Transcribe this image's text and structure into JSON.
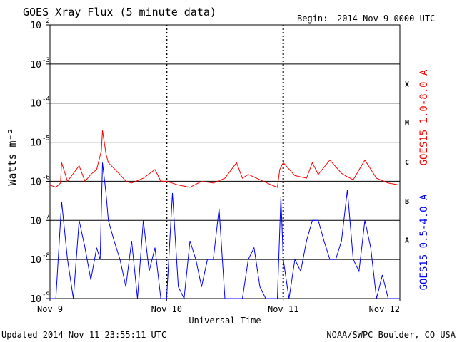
{
  "header": {
    "title": "GOES Xray Flux (5 minute data)",
    "begin_label": "Begin:",
    "begin_value": "2014 Nov 9 0000 UTC"
  },
  "footer": {
    "updated": "Updated 2014 Nov 11 23:55:11 UTC",
    "credit": "NOAA/SWPC Boulder, CO USA"
  },
  "colors": {
    "long_channel": "#ff0000",
    "short_channel": "#0000ff",
    "axes": "#000000"
  },
  "chart_data": {
    "type": "line",
    "title": "GOES Xray Flux (5 minute data)",
    "xlabel": "Universal Time",
    "ylabel": "Watts m⁻²",
    "yscale": "log",
    "ylim": [
      1e-09,
      0.01
    ],
    "xlim": [
      0,
      3
    ],
    "x_unit": "days since 2014 Nov 9 0000 UTC",
    "grid": true,
    "x_ticks": [
      {
        "x": 0,
        "label": "Nov 9"
      },
      {
        "x": 1,
        "label": "Nov 10"
      },
      {
        "x": 2,
        "label": "Nov 11"
      },
      {
        "x": 3,
        "label": "Nov 12"
      }
    ],
    "y_ticks": [
      {
        "base": "10",
        "exp": "-9",
        "value": 1e-09
      },
      {
        "base": "10",
        "exp": "-8",
        "value": 1e-08
      },
      {
        "base": "10",
        "exp": "-7",
        "value": 1e-07
      },
      {
        "base": "10",
        "exp": "-6",
        "value": 1e-06
      },
      {
        "base": "10",
        "exp": "-5",
        "value": 1e-05
      },
      {
        "base": "10",
        "exp": "-4",
        "value": 0.0001
      },
      {
        "base": "10",
        "exp": "-3",
        "value": 0.001
      },
      {
        "base": "10",
        "exp": "-2",
        "value": 0.01
      }
    ],
    "flare_classes": [
      {
        "label": "A",
        "lo": 1e-08,
        "hi": 1e-07
      },
      {
        "label": "B",
        "lo": 1e-07,
        "hi": 1e-06
      },
      {
        "label": "C",
        "lo": 1e-06,
        "hi": 1e-05
      },
      {
        "label": "M",
        "lo": 1e-05,
        "hi": 0.0001
      },
      {
        "label": "X",
        "lo": 0.0001,
        "hi": 0.001
      }
    ],
    "series": [
      {
        "name": "GOES15 1.0-8.0 A",
        "color": "#ff0000",
        "x": [
          0.0,
          0.05,
          0.09,
          0.1,
          0.15,
          0.25,
          0.3,
          0.35,
          0.4,
          0.44,
          0.45,
          0.48,
          0.5,
          0.6,
          0.65,
          0.7,
          0.8,
          0.9,
          0.95,
          1.0,
          1.1,
          1.2,
          1.3,
          1.4,
          1.5,
          1.6,
          1.65,
          1.7,
          1.8,
          1.9,
          1.95,
          1.97,
          2.0,
          2.1,
          2.2,
          2.25,
          2.3,
          2.4,
          2.5,
          2.55,
          2.6,
          2.7,
          2.8,
          2.9,
          3.0
        ],
        "y": [
          8e-07,
          7e-07,
          9e-07,
          3e-06,
          1e-06,
          2.5e-06,
          1e-06,
          1.5e-06,
          2e-06,
          6e-06,
          2e-05,
          5e-06,
          3e-06,
          1.5e-06,
          1e-06,
          9e-07,
          1.2e-06,
          2e-06,
          1e-06,
          1e-06,
          8e-07,
          7e-07,
          1e-06,
          9e-07,
          1.2e-06,
          3e-06,
          1.2e-06,
          1.5e-06,
          1.1e-06,
          8e-07,
          7e-07,
          2e-06,
          3e-06,
          1.4e-06,
          1.2e-06,
          3e-06,
          1.5e-06,
          3.5e-06,
          1.6e-06,
          1.3e-06,
          1.1e-06,
          3.5e-06,
          1.2e-06,
          9e-07,
          8e-07
        ]
      },
      {
        "name": "GOES15 0.5-4.0 A",
        "color": "#0000ff",
        "x": [
          0.0,
          0.05,
          0.1,
          0.15,
          0.2,
          0.25,
          0.3,
          0.35,
          0.4,
          0.43,
          0.45,
          0.48,
          0.5,
          0.55,
          0.6,
          0.65,
          0.7,
          0.75,
          0.8,
          0.85,
          0.9,
          0.95,
          1.0,
          1.05,
          1.1,
          1.15,
          1.2,
          1.25,
          1.3,
          1.35,
          1.4,
          1.45,
          1.5,
          1.55,
          1.6,
          1.65,
          1.7,
          1.75,
          1.8,
          1.85,
          1.9,
          1.95,
          1.98,
          2.0,
          2.05,
          2.1,
          2.15,
          2.2,
          2.25,
          2.3,
          2.35,
          2.4,
          2.45,
          2.5,
          2.55,
          2.6,
          2.65,
          2.7,
          2.75,
          2.8,
          2.85,
          2.9,
          2.95,
          3.0
        ],
        "y": [
          1e-09,
          1e-09,
          3e-07,
          1e-08,
          1e-09,
          1e-07,
          2e-08,
          3e-09,
          2e-08,
          1e-08,
          3e-06,
          5e-07,
          1e-07,
          3e-08,
          1e-08,
          2e-09,
          3e-08,
          1e-09,
          1e-07,
          5e-09,
          2e-08,
          1e-09,
          1e-09,
          5e-07,
          2e-09,
          1e-09,
          3e-08,
          1e-08,
          2e-09,
          1e-08,
          1e-08,
          2e-07,
          1e-09,
          1e-09,
          1e-09,
          1e-09,
          1e-08,
          2e-08,
          2e-09,
          1e-09,
          1e-09,
          1e-09,
          4e-07,
          1e-08,
          1e-09,
          1e-08,
          5e-09,
          3e-08,
          1e-07,
          1e-07,
          3e-08,
          1e-08,
          1e-08,
          3e-08,
          6e-07,
          1e-08,
          5e-09,
          1e-07,
          2e-08,
          1e-09,
          4e-09,
          1e-09,
          1e-09,
          1e-09
        ]
      }
    ]
  }
}
